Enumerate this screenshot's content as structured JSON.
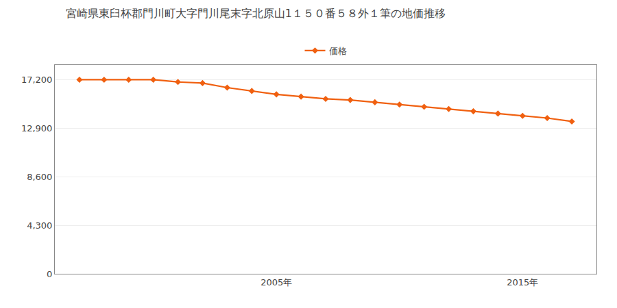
{
  "chart_data": {
    "type": "line",
    "title": "宮崎県東臼杯郡門川町大字門川尾末字北原山1１５０番５８外１筆の地価推移",
    "x": [
      1997,
      1998,
      1999,
      2000,
      2001,
      2002,
      2003,
      2004,
      2005,
      2006,
      2007,
      2008,
      2009,
      2010,
      2011,
      2012,
      2013,
      2014,
      2015,
      2016,
      2017
    ],
    "series": [
      {
        "name": "価格",
        "color": "#f06010",
        "marker": "diamond",
        "values": [
          17200,
          17200,
          17200,
          17200,
          17000,
          16900,
          16500,
          16200,
          15900,
          15700,
          15500,
          15400,
          15200,
          15000,
          14800,
          14600,
          14400,
          14200,
          14000,
          13800,
          13500
        ]
      }
    ],
    "xlim": [
      1996,
      2018
    ],
    "xticks": [
      {
        "value": 2005,
        "label": "2005年"
      },
      {
        "value": 2015,
        "label": "2015年"
      }
    ],
    "ylim": [
      0,
      18500
    ],
    "yticks": [
      0,
      {
        "value": 4300,
        "label": "4,300"
      },
      {
        "value": 8600,
        "label": "8,600"
      },
      {
        "value": 12900,
        "label": "12,900"
      },
      {
        "value": 17200,
        "label": "17,200"
      }
    ],
    "grid": true,
    "legend": "top"
  }
}
